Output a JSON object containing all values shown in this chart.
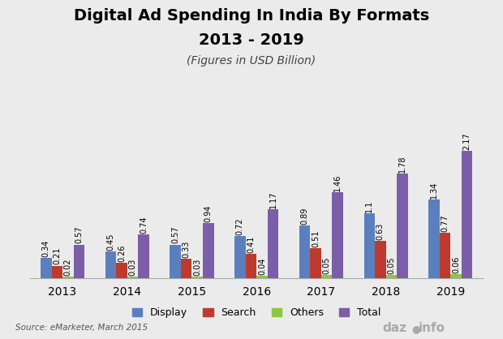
{
  "title_line1": "Digital Ad Spending In India By Formats",
  "title_line2": "2013 - 2019",
  "subtitle": "(Figures in USD Billion)",
  "source": "Source: eMarketer, March 2015",
  "years": [
    "2013",
    "2014",
    "2015",
    "2016",
    "2017",
    "2018",
    "2019"
  ],
  "display": [
    0.34,
    0.45,
    0.57,
    0.72,
    0.89,
    1.1,
    1.34
  ],
  "search": [
    0.21,
    0.26,
    0.33,
    0.41,
    0.51,
    0.63,
    0.77
  ],
  "others": [
    0.02,
    0.03,
    0.03,
    0.04,
    0.05,
    0.05,
    0.06
  ],
  "total": [
    0.57,
    0.74,
    0.94,
    1.17,
    1.46,
    1.78,
    2.17
  ],
  "display_color": "#5B7FBE",
  "search_color": "#BE3A2E",
  "others_color": "#8DC63F",
  "total_color": "#7B5EA7",
  "background_color": "#EBEBEB",
  "ylim": [
    0,
    2.6
  ],
  "bar_width": 0.17,
  "title_fontsize": 14,
  "subtitle_fontsize": 10,
  "label_fontsize": 7,
  "legend_fontsize": 9,
  "tick_fontsize": 10
}
